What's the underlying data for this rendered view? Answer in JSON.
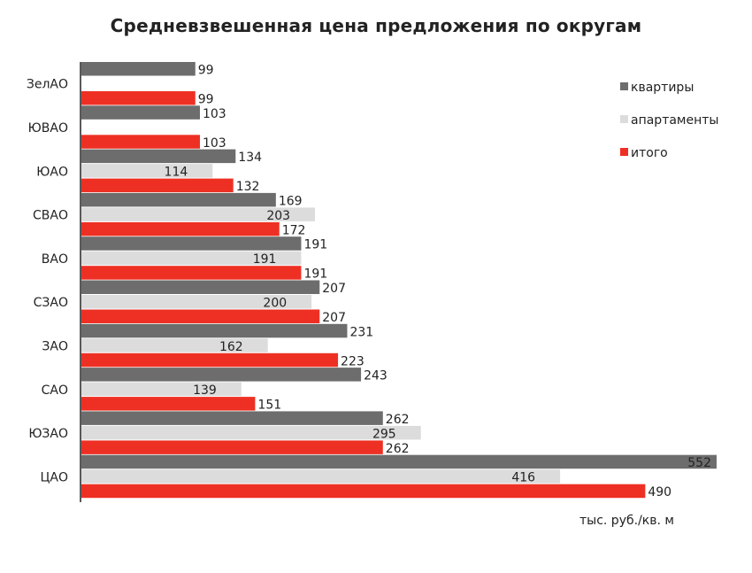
{
  "chart_data": {
    "type": "bar",
    "orientation": "horizontal",
    "title": "Средневзвешенная цена предложения по округам",
    "unit_label": "тыс. руб./кв. м",
    "categories": [
      "ЗелАО",
      "ЮВАО",
      "ЮАО",
      "СВАО",
      "ВАО",
      "СЗАО",
      "ЗАО",
      "САО",
      "ЮЗАО",
      "ЦАО"
    ],
    "series": [
      {
        "name": "квартиры",
        "color": "#6d6d6d",
        "values": [
          99,
          103,
          134,
          169,
          191,
          207,
          231,
          243,
          262,
          552
        ]
      },
      {
        "name": "апартаменты",
        "color": "#dcdcdc",
        "values": [
          null,
          null,
          114,
          203,
          191,
          200,
          162,
          139,
          295,
          416
        ]
      },
      {
        "name": "итого",
        "color": "#ee3024",
        "values": [
          99,
          103,
          132,
          172,
          191,
          207,
          223,
          151,
          262,
          490
        ]
      }
    ],
    "xlim": [
      0,
      552
    ],
    "legend_position": "top-right",
    "grid": false
  }
}
